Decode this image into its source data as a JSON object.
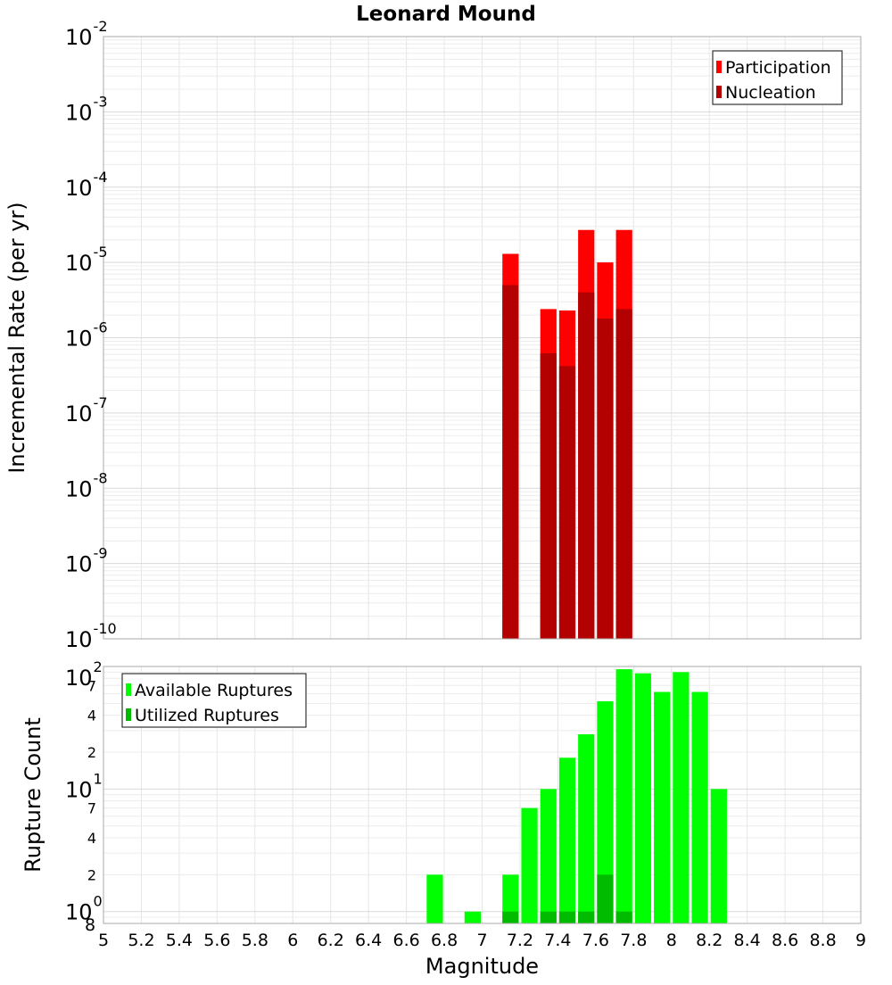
{
  "chart_data": [
    {
      "type": "bar",
      "title": "Leonard Mound",
      "ylabel": "Incremental Rate (per yr)",
      "yscale": "log",
      "ylim_exponents": [
        -10,
        -2
      ],
      "xlim": [
        5,
        9
      ],
      "bar_width": 0.1,
      "legend_position": "top-right",
      "series": [
        {
          "name": "Participation",
          "color": "#ff0000",
          "x": [
            7.15,
            7.35,
            7.45,
            7.55,
            7.65,
            7.75
          ],
          "values": [
            1.3e-05,
            2.4e-06,
            2.3e-06,
            2.7e-05,
            1e-05,
            2.7e-05
          ]
        },
        {
          "name": "Nucleation",
          "color": "#b30000",
          "x": [
            7.15,
            7.35,
            7.45,
            7.55,
            7.65,
            7.75
          ],
          "values": [
            5e-06,
            6.2e-07,
            4.2e-07,
            4e-06,
            1.8e-06,
            2.4e-06
          ]
        }
      ]
    },
    {
      "type": "bar",
      "ylabel": "Rupture Count",
      "xlabel": "Magnitude",
      "yscale": "log",
      "ylim": [
        0.8,
        100
      ],
      "xlim": [
        5,
        9
      ],
      "bar_width": 0.1,
      "legend_position": "top-left",
      "x_ticks": [
        "5",
        "5.2",
        "5.4",
        "5.6",
        "5.8",
        "6",
        "6.2",
        "6.4",
        "6.6",
        "6.8",
        "7",
        "7.2",
        "7.4",
        "7.6",
        "7.8",
        "8",
        "8.2",
        "8.4",
        "8.6",
        "8.8",
        "9"
      ],
      "y_major_ticks": [
        {
          "base": "10",
          "exp": "0",
          "value": 1
        },
        {
          "base": "10",
          "exp": "1",
          "value": 10
        },
        {
          "base": "10",
          "exp": "2",
          "value": 100
        }
      ],
      "y_minor_ticks": [
        {
          "label": "2",
          "value": 2
        },
        {
          "label": "4",
          "value": 4
        },
        {
          "label": "7",
          "value": 7
        },
        {
          "label": "2",
          "value": 20
        },
        {
          "label": "4",
          "value": 40
        },
        {
          "label": "7",
          "value": 70
        }
      ],
      "y_bottom_label": "8",
      "series": [
        {
          "name": "Available Ruptures",
          "color": "#00ff00",
          "x": [
            6.75,
            6.95,
            7.15,
            7.25,
            7.35,
            7.45,
            7.55,
            7.65,
            7.75,
            7.85,
            7.95,
            8.05,
            8.15,
            8.25
          ],
          "values": [
            2,
            1,
            2,
            7,
            10,
            18,
            28,
            52,
            95,
            88,
            62,
            90,
            62,
            10
          ]
        },
        {
          "name": "Utilized Ruptures",
          "color": "#00bb00",
          "x": [
            7.15,
            7.35,
            7.45,
            7.55,
            7.65,
            7.75
          ],
          "values": [
            1,
            1,
            1,
            1,
            2,
            1
          ]
        }
      ]
    }
  ]
}
